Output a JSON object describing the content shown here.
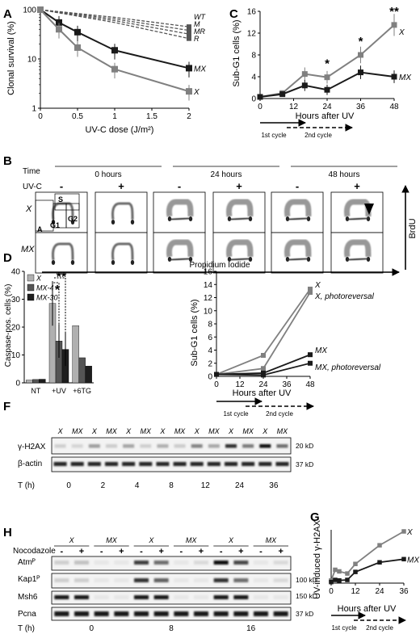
{
  "panel_letters": [
    "A",
    "B",
    "C",
    "D",
    "E",
    "F",
    "G",
    "H"
  ],
  "colors": {
    "x_line": "#808080",
    "mx_line": "#1a1a1a",
    "dashed": "#555555"
  },
  "panelA": {
    "xlabel": "UV-C dose (J/m²)",
    "ylabel": "Clonal survival (%)"
  },
  "panelC": {
    "xlabel": "Hours after UV",
    "ylabel": "Sub-G1 cells (%)",
    "asterisks": [
      "*",
      "*",
      "**"
    ]
  },
  "panelE": {
    "xlabel": "Hours after UV",
    "ylabel": "Sub-G1 cells (%)"
  },
  "panelG": {
    "xlabel": "Hours after UV",
    "ylabel": "UV-induced γ-H2AX"
  },
  "cycles": {
    "first": "1st cycle",
    "second": "2nd cycle"
  },
  "panelB": {
    "row_labels": [
      "Time",
      "UV-C"
    ],
    "times": [
      "0 hours",
      "24 hours",
      "48 hours"
    ],
    "uv_signs": [
      "-",
      "+",
      "-",
      "+",
      "-",
      "+"
    ],
    "lines": [
      "X",
      "MX"
    ],
    "gate_labels": [
      "S",
      "G1",
      "G2",
      "A"
    ],
    "xaxis": "Propidium Iodide",
    "yaxis": "BrdU"
  },
  "panelD": {
    "ylabel": "Caspase-pos. cells (%)",
    "asterisks": [
      "*",
      "**"
    ]
  },
  "panelF": {
    "lane_labels": [
      "X",
      "MX",
      "X",
      "MX",
      "X",
      "MX",
      "X",
      "MX",
      "X",
      "MX",
      "X",
      "MX",
      "X",
      "MX"
    ],
    "row_labels": [
      "γ-H2AX",
      "β-actin"
    ],
    "markers": [
      "20 kD",
      "37 kD"
    ],
    "time_label": "T (h)",
    "times": [
      "0",
      "2",
      "4",
      "8",
      "12",
      "24",
      "36"
    ]
  },
  "panelH": {
    "lines": [
      "X",
      "MX",
      "X",
      "MX",
      "X",
      "MX"
    ],
    "noco_label": "Nocodazole",
    "noco_signs": [
      "-",
      "+",
      "-",
      "+",
      "-",
      "+",
      "-",
      "+",
      "-",
      "+",
      "-",
      "+"
    ],
    "row_labels": [
      "Atmᴾ",
      "Kap1ᴾ",
      "Msh6",
      "Pcna"
    ],
    "markers": [
      "100 kD",
      "150 kD",
      "37 kD"
    ],
    "time_label": "T (h)",
    "times": [
      "0",
      "8",
      "16"
    ]
  },
  "chart_data": [
    {
      "panel": "A",
      "type": "line",
      "title": "",
      "xlabel": "UV-C dose (J/m²)",
      "ylabel": "Clonal survival (%)",
      "yscale": "log",
      "xlim": [
        0,
        2
      ],
      "ylim": [
        1,
        100
      ],
      "xticks": [
        0,
        0.5,
        1,
        1.5,
        2
      ],
      "yticks": [
        1,
        10,
        100
      ],
      "series": [
        {
          "name": "WT",
          "style": "dashed",
          "x": [
            0,
            1,
            2
          ],
          "y": [
            100,
            70,
            45
          ]
        },
        {
          "name": "M",
          "style": "dashed",
          "x": [
            0,
            1,
            2
          ],
          "y": [
            100,
            65,
            38
          ]
        },
        {
          "name": "MR",
          "style": "dashed",
          "x": [
            0,
            1,
            2
          ],
          "y": [
            100,
            60,
            32
          ]
        },
        {
          "name": "R",
          "style": "dashed",
          "x": [
            0,
            1,
            2
          ],
          "y": [
            100,
            55,
            26
          ]
        },
        {
          "name": "MX",
          "style": "solid",
          "x": [
            0,
            0.25,
            0.5,
            1,
            2
          ],
          "y": [
            100,
            55,
            35,
            15,
            6.5
          ]
        },
        {
          "name": "X",
          "style": "solid",
          "x": [
            0,
            0.25,
            0.5,
            1,
            2
          ],
          "y": [
            100,
            40,
            17,
            6.2,
            2.2
          ]
        }
      ]
    },
    {
      "panel": "C",
      "type": "line",
      "title": "",
      "xlabel": "Hours after UV",
      "ylabel": "Sub-G1 cells (%)",
      "xlim": [
        0,
        48
      ],
      "ylim": [
        0,
        16
      ],
      "xticks": [
        0,
        12,
        24,
        36,
        48
      ],
      "yticks": [
        0,
        4,
        8,
        12,
        16
      ],
      "series": [
        {
          "name": "X",
          "x": [
            0,
            8,
            16,
            24,
            36,
            48
          ],
          "y": [
            0.3,
            1.0,
            4.5,
            3.9,
            8.0,
            13.5
          ]
        },
        {
          "name": "MX",
          "x": [
            0,
            8,
            16,
            24,
            36,
            48
          ],
          "y": [
            0.3,
            0.8,
            2.4,
            1.6,
            4.8,
            4.0
          ]
        }
      ],
      "annotations": [
        {
          "text": "*",
          "x": 24
        },
        {
          "text": "*",
          "x": 36
        },
        {
          "text": "**",
          "x": 48
        }
      ]
    },
    {
      "panel": "D",
      "type": "bar",
      "title": "",
      "ylabel": "Caspase-pos. cells (%)",
      "ylim": [
        0,
        40
      ],
      "yticks": [
        0,
        10,
        20,
        30,
        40
      ],
      "categories": [
        "NT",
        "+UV",
        "+6TG"
      ],
      "series": [
        {
          "name": "X",
          "values": [
            1.0,
            28.5,
            20.5
          ]
        },
        {
          "name": "MX-4",
          "values": [
            1.2,
            15.0,
            9.0
          ]
        },
        {
          "name": "MX-30",
          "values": [
            1.3,
            12.0,
            6.0
          ]
        }
      ]
    },
    {
      "panel": "E",
      "type": "line",
      "title": "",
      "xlabel": "Hours after UV",
      "ylabel": "Sub-G1 cells (%)",
      "xlim": [
        0,
        48
      ],
      "ylim": [
        0,
        16
      ],
      "xticks": [
        0,
        12,
        24,
        36,
        48
      ],
      "yticks": [
        0,
        2,
        4,
        6,
        8,
        10,
        12,
        14,
        16
      ],
      "series": [
        {
          "name": "X",
          "x": [
            0,
            24,
            48
          ],
          "y": [
            0.3,
            3.2,
            13.3
          ]
        },
        {
          "name": "X, photoreversal",
          "x": [
            0,
            24,
            48
          ],
          "y": [
            0.3,
            1.2,
            12.8
          ]
        },
        {
          "name": "MX",
          "x": [
            0,
            24,
            48
          ],
          "y": [
            0.3,
            0.5,
            3.3
          ]
        },
        {
          "name": "MX, photoreversal",
          "x": [
            0,
            24,
            48
          ],
          "y": [
            0.3,
            0.2,
            2.0
          ]
        }
      ]
    },
    {
      "panel": "G",
      "type": "line",
      "title": "",
      "xlabel": "Hours after UV",
      "ylabel": "UV-induced γ-H2AX",
      "xlim": [
        0,
        36
      ],
      "ylim": [
        0,
        10
      ],
      "xticks": [
        0,
        12,
        24,
        36
      ],
      "series": [
        {
          "name": "X",
          "x": [
            0,
            2,
            4,
            8,
            12,
            24,
            36
          ],
          "y": [
            0.5,
            2.5,
            2.2,
            1.8,
            3.6,
            7.1,
            9.7
          ]
        },
        {
          "name": "MX",
          "x": [
            0,
            2,
            4,
            8,
            12,
            24,
            36
          ],
          "y": [
            0.2,
            0.6,
            0.5,
            0.6,
            2.1,
            3.9,
            4.5
          ]
        }
      ]
    }
  ]
}
